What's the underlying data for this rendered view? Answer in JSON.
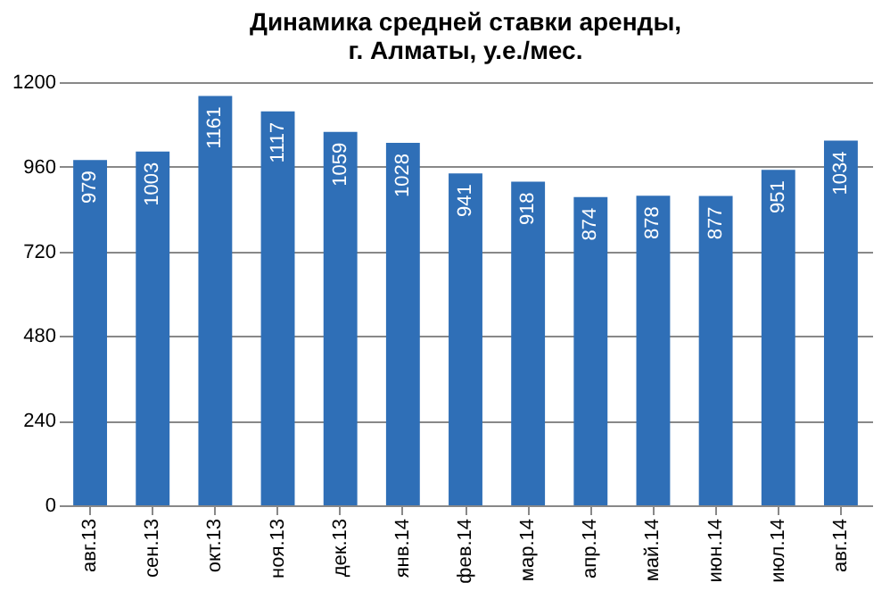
{
  "chart_data": {
    "type": "bar",
    "title": "Динамика средней ставки аренды,\nг. Алматы, у.е./мес.",
    "categories": [
      "авг.13",
      "сен.13",
      "окт.13",
      "ноя.13",
      "дек.13",
      "янв.14",
      "фев.14",
      "мар.14",
      "апр.14",
      "май.14",
      "июн.14",
      "июл.14",
      "авг.14"
    ],
    "values": [
      979,
      1003,
      1161,
      1117,
      1059,
      1028,
      941,
      918,
      874,
      878,
      877,
      951,
      1034
    ],
    "color": "#2f6fb7",
    "ylim": [
      0,
      1200
    ],
    "yticks": [
      0,
      240,
      480,
      720,
      960,
      1200
    ],
    "grid": "y",
    "data_labels": true
  }
}
